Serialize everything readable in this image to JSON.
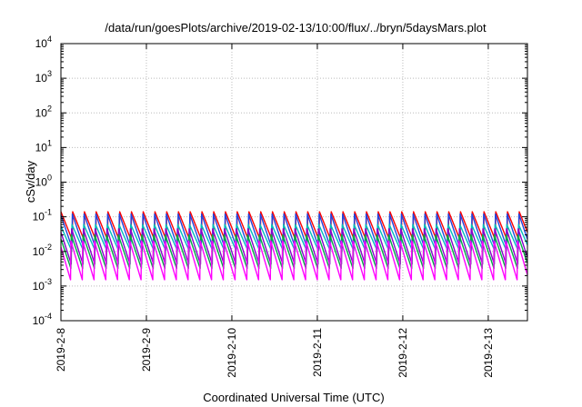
{
  "chart_data": {
    "type": "line",
    "title": "/data/run/goesPlots/archive/2019-02-13/10:00/flux/../bryn/5daysMars.plot",
    "xlabel": "Coordinated Universal Time (UTC)",
    "ylabel": "cSv/day",
    "yscale": "log",
    "ylim": [
      0.0001,
      10000
    ],
    "xlim": [
      "2019-02-08T00:00",
      "2019-02-13T11:00"
    ],
    "grid": true,
    "x_ticks": [
      {
        "t": "2019-02-08T00:00",
        "label": "2019-2-8"
      },
      {
        "t": "2019-02-09T00:00",
        "label": "2019-2-9"
      },
      {
        "t": "2019-02-10T00:00",
        "label": "2019-2-10"
      },
      {
        "t": "2019-02-11T00:00",
        "label": "2019-2-11"
      },
      {
        "t": "2019-02-12T00:00",
        "label": "2019-2-12"
      },
      {
        "t": "2019-02-13T00:00",
        "label": "2019-2-13"
      }
    ],
    "y_ticks": [
      {
        "v": 0.0001,
        "base": "10",
        "exp": "-4"
      },
      {
        "v": 0.001,
        "base": "10",
        "exp": "-3"
      },
      {
        "v": 0.01,
        "base": "10",
        "exp": "-2"
      },
      {
        "v": 0.1,
        "base": "10",
        "exp": "-1"
      },
      {
        "v": 1,
        "base": "10",
        "exp": "0"
      },
      {
        "v": 10,
        "base": "10",
        "exp": "1"
      },
      {
        "v": 100,
        "base": "10",
        "exp": "2"
      },
      {
        "v": 1000,
        "base": "10",
        "exp": "3"
      },
      {
        "v": 10000,
        "base": "10",
        "exp": "4"
      }
    ],
    "sawtooth_period_hours": 3.3,
    "series": [
      {
        "color": "#ff0000",
        "peak": 0.14,
        "trough": 0.02
      },
      {
        "color": "#2244dd",
        "peak": 0.12,
        "trough": 0.012
      },
      {
        "color": "#00bbbb",
        "peak": 0.06,
        "trough": 0.01
      },
      {
        "color": "#8800cc",
        "peak": 0.045,
        "trough": 0.004
      },
      {
        "color": "#00aa44",
        "peak": 0.03,
        "trough": 0.003
      },
      {
        "color": "#ff00ff",
        "peak": 0.02,
        "trough": 0.0014
      }
    ]
  }
}
